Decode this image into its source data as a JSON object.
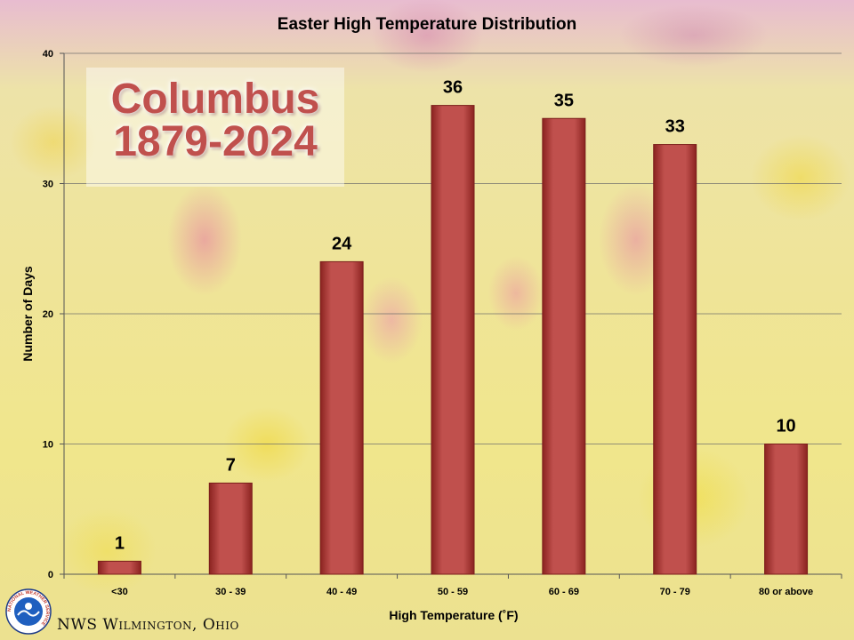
{
  "overlay": {
    "line1": "Columbus",
    "line2": "1879-2024"
  },
  "footer": {
    "credit": "NWS Wilmington, Ohio",
    "logo_text": "NATIONAL WEATHER SERVICE"
  },
  "colors": {
    "bar": "#c0504d",
    "bar_dark": "#8b2320",
    "overlay_text": "#c0504d"
  },
  "chart_data": {
    "type": "bar",
    "title": "Easter High Temperature Distribution",
    "xlabel": "High Temperature (˚F)",
    "ylabel": "Number of Days",
    "categories": [
      "<30",
      "30 - 39",
      "40 - 49",
      "50 - 59",
      "60 - 69",
      "70 - 79",
      "80 or above"
    ],
    "values": [
      1,
      7,
      24,
      36,
      35,
      33,
      10
    ],
    "ylim": [
      0,
      40
    ],
    "yticks": [
      0,
      10,
      20,
      30,
      40
    ],
    "grid": true,
    "data_labels": true,
    "legend": "none"
  }
}
